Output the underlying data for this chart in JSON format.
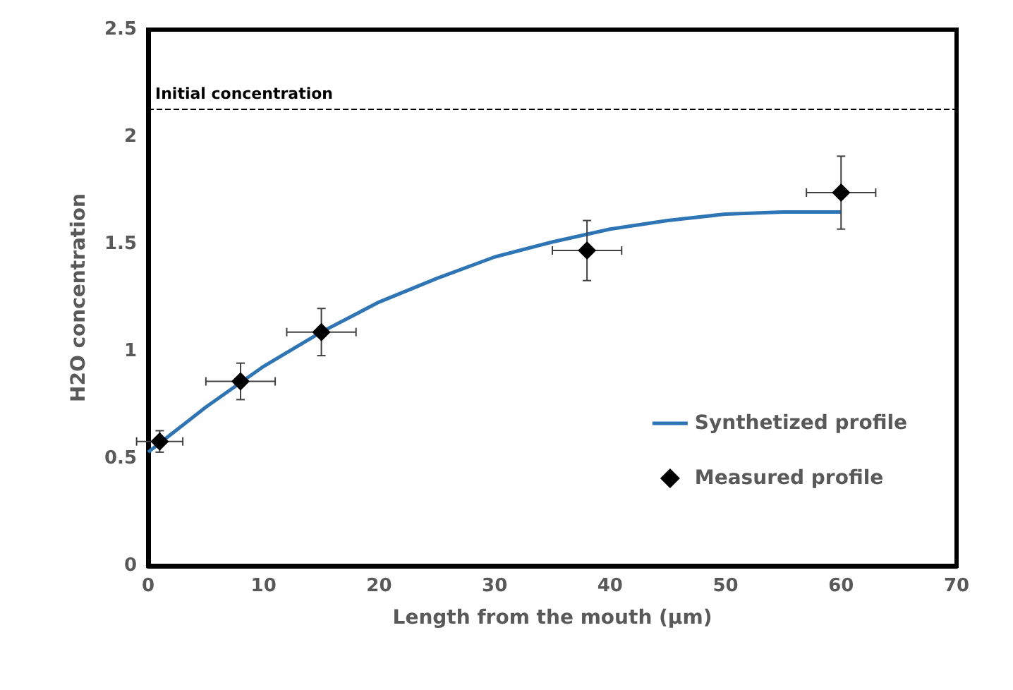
{
  "chart_data": {
    "type": "scatter",
    "xlabel": "Length from the mouth (µm)",
    "ylabel": "H2O concentration",
    "xlim": [
      0,
      70
    ],
    "xticks": [
      0,
      10,
      20,
      30,
      40,
      50,
      60,
      70
    ],
    "ylim": [
      0,
      2.5
    ],
    "yticks": [
      0,
      0.5,
      1,
      1.5,
      2,
      2.5
    ],
    "grid": false,
    "legend": "right",
    "ref_lines": [
      {
        "axis": "y",
        "value": 2.13,
        "label": "Initial concentration",
        "color": "#000000",
        "line_style": "dashed"
      }
    ],
    "series": [
      {
        "name": "Synthetized profile",
        "type": "line",
        "color": "#2e75b6",
        "marker": "none",
        "x": [
          0,
          5,
          10,
          15,
          20,
          25,
          30,
          35,
          40,
          45,
          50,
          55,
          60
        ],
        "values": [
          0.53,
          0.74,
          0.93,
          1.09,
          1.23,
          1.34,
          1.44,
          1.51,
          1.57,
          1.61,
          1.64,
          1.65,
          1.65
        ]
      },
      {
        "name": "Measured profile",
        "color": "#000000",
        "marker": "diamond",
        "x": [
          1,
          8,
          15,
          38,
          60
        ],
        "values": [
          0.58,
          0.86,
          1.09,
          1.47,
          1.74
        ],
        "errors": [
          0.05,
          0.085,
          0.11,
          0.14,
          0.17
        ],
        "xerrors": [
          2,
          3,
          3,
          3,
          3
        ]
      }
    ]
  }
}
